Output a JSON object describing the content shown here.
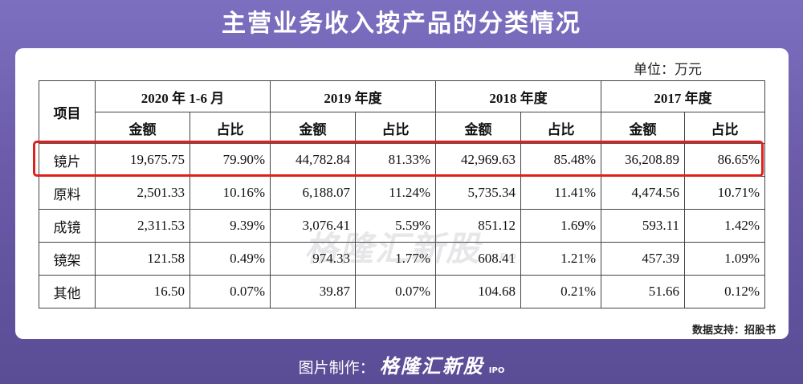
{
  "title": "主营业务收入按产品的分类情况",
  "unit": "单位：万元",
  "table": {
    "item_header": "项目",
    "periods": [
      "2020 年 1-6 月",
      "2019 年度",
      "2018 年度",
      "2017 年度"
    ],
    "sub_headers": [
      "金额",
      "占比",
      "金额",
      "占比",
      "金额",
      "占比",
      "金额",
      "占比"
    ],
    "rows": [
      {
        "label": "镜片",
        "cells": [
          "19,675.75",
          "79.90%",
          "44,782.84",
          "81.33%",
          "42,969.63",
          "85.48%",
          "36,208.89",
          "86.65%"
        ]
      },
      {
        "label": "原料",
        "cells": [
          "2,501.33",
          "10.16%",
          "6,188.07",
          "11.24%",
          "5,735.34",
          "11.41%",
          "4,474.56",
          "10.71%"
        ]
      },
      {
        "label": "成镜",
        "cells": [
          "2,311.53",
          "9.39%",
          "3,076.41",
          "5.59%",
          "851.12",
          "1.69%",
          "593.11",
          "1.42%"
        ]
      },
      {
        "label": "镜架",
        "cells": [
          "121.58",
          "0.49%",
          "974.33",
          "1.77%",
          "608.41",
          "1.21%",
          "457.39",
          "1.09%"
        ]
      },
      {
        "label": "其他",
        "cells": [
          "16.50",
          "0.07%",
          "39.87",
          "0.07%",
          "104.68",
          "0.21%",
          "51.66",
          "0.12%"
        ]
      }
    ],
    "highlighted_row": "镜片",
    "highlight_color": "#e0201c"
  },
  "watermark": {
    "text": "格隆汇新股",
    "sub": "IPO"
  },
  "source": "数据支持：招股书",
  "footer": {
    "prefix": "图片制作：",
    "brand": "格隆汇新股",
    "sub": "IPO"
  },
  "colors": {
    "background": "#6a5aa8",
    "title": "#ffffff",
    "card": "#ffffff"
  }
}
